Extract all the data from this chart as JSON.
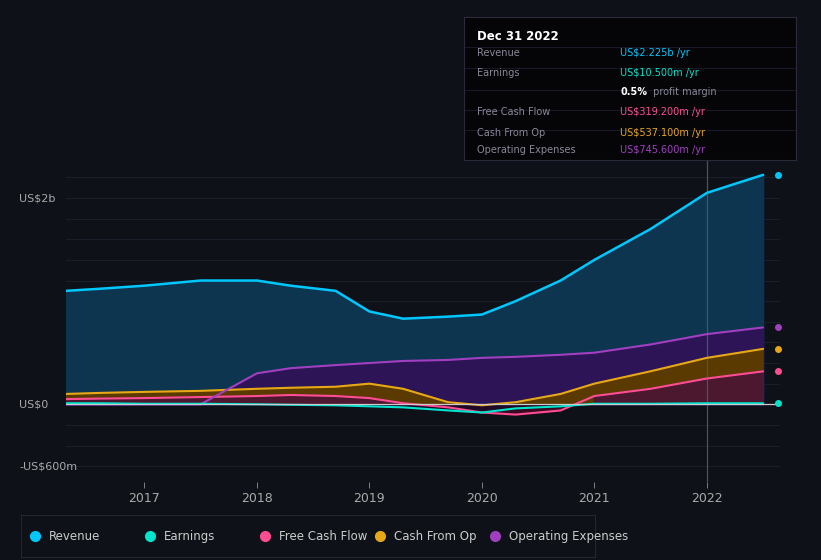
{
  "bg_color": "#0e1117",
  "plot_bg_color": "#0e1117",
  "title": "Dec 31 2022",
  "ylabel_top": "US$2b",
  "ylabel_bottom": "-US$600m",
  "ylabel_zero": "US$0",
  "x_years": [
    2016.3,
    2016.6,
    2017.0,
    2017.5,
    2018.0,
    2018.3,
    2018.7,
    2019.0,
    2019.3,
    2019.7,
    2020.0,
    2020.3,
    2020.7,
    2021.0,
    2021.5,
    2022.0,
    2022.5
  ],
  "revenue": [
    1100,
    1120,
    1150,
    1200,
    1200,
    1150,
    1100,
    900,
    830,
    850,
    870,
    1000,
    1200,
    1400,
    1700,
    2050,
    2225
  ],
  "earnings": [
    10,
    10,
    5,
    5,
    0,
    -5,
    -10,
    -20,
    -30,
    -60,
    -80,
    -40,
    -20,
    5,
    5,
    10,
    10
  ],
  "free_cash_flow": [
    50,
    55,
    60,
    70,
    80,
    90,
    80,
    60,
    10,
    -30,
    -80,
    -100,
    -60,
    80,
    150,
    250,
    319
  ],
  "cash_from_op": [
    100,
    110,
    120,
    130,
    150,
    160,
    170,
    200,
    150,
    20,
    -10,
    20,
    100,
    200,
    320,
    450,
    537
  ],
  "operating_expenses": [
    0,
    0,
    0,
    0,
    300,
    350,
    380,
    400,
    420,
    430,
    450,
    460,
    480,
    500,
    580,
    680,
    745
  ],
  "revenue_color": "#00c8ff",
  "earnings_color": "#00e5cc",
  "free_cash_flow_color": "#ff4d94",
  "cash_from_op_color": "#e6a817",
  "operating_expenses_color": "#a040c0",
  "revenue_fill": "#0d3550",
  "opex_fill": "#2d1456",
  "cfo_fill_pos": "#5a3a00",
  "cfo_fill_neg": "#3a1500",
  "fcf_fill_pos": "#4a1535",
  "fcf_fill_neg": "#3a0a20",
  "earn_fill_neg": "#1a0a2a",
  "grid_color": "#1e2535",
  "zero_line_color": "#cccccc",
  "xticklabels": [
    "2017",
    "2018",
    "2019",
    "2020",
    "2021",
    "2022"
  ],
  "xtick_positions": [
    2017,
    2018,
    2019,
    2020,
    2021,
    2022
  ],
  "ylim_top": 2400,
  "ylim_bottom": -750,
  "xlim_left": 2016.3,
  "xlim_right": 2022.65,
  "vertical_line_x": 2022.0,
  "info_title": "Dec 31 2022",
  "info_rows": [
    {
      "label": "Revenue",
      "value": "US$2.225b /yr",
      "color": "#00c8ff"
    },
    {
      "label": "Earnings",
      "value": "US$10.500m /yr",
      "color": "#00e5cc"
    },
    {
      "label": "",
      "value": "0.5% profit margin",
      "color": "#aaaaaa"
    },
    {
      "label": "Free Cash Flow",
      "value": "US$319.200m /yr",
      "color": "#ff4d94"
    },
    {
      "label": "Cash From Op",
      "value": "US$537.100m /yr",
      "color": "#e6a817"
    },
    {
      "label": "Operating Expenses",
      "value": "US$745.600m /yr",
      "color": "#a040c0"
    }
  ],
  "legend_items": [
    {
      "label": "Revenue",
      "color": "#00c8ff"
    },
    {
      "label": "Earnings",
      "color": "#00e5cc"
    },
    {
      "label": "Free Cash Flow",
      "color": "#ff4d94"
    },
    {
      "label": "Cash From Op",
      "color": "#e6a817"
    },
    {
      "label": "Operating Expenses",
      "color": "#a040c0"
    }
  ]
}
